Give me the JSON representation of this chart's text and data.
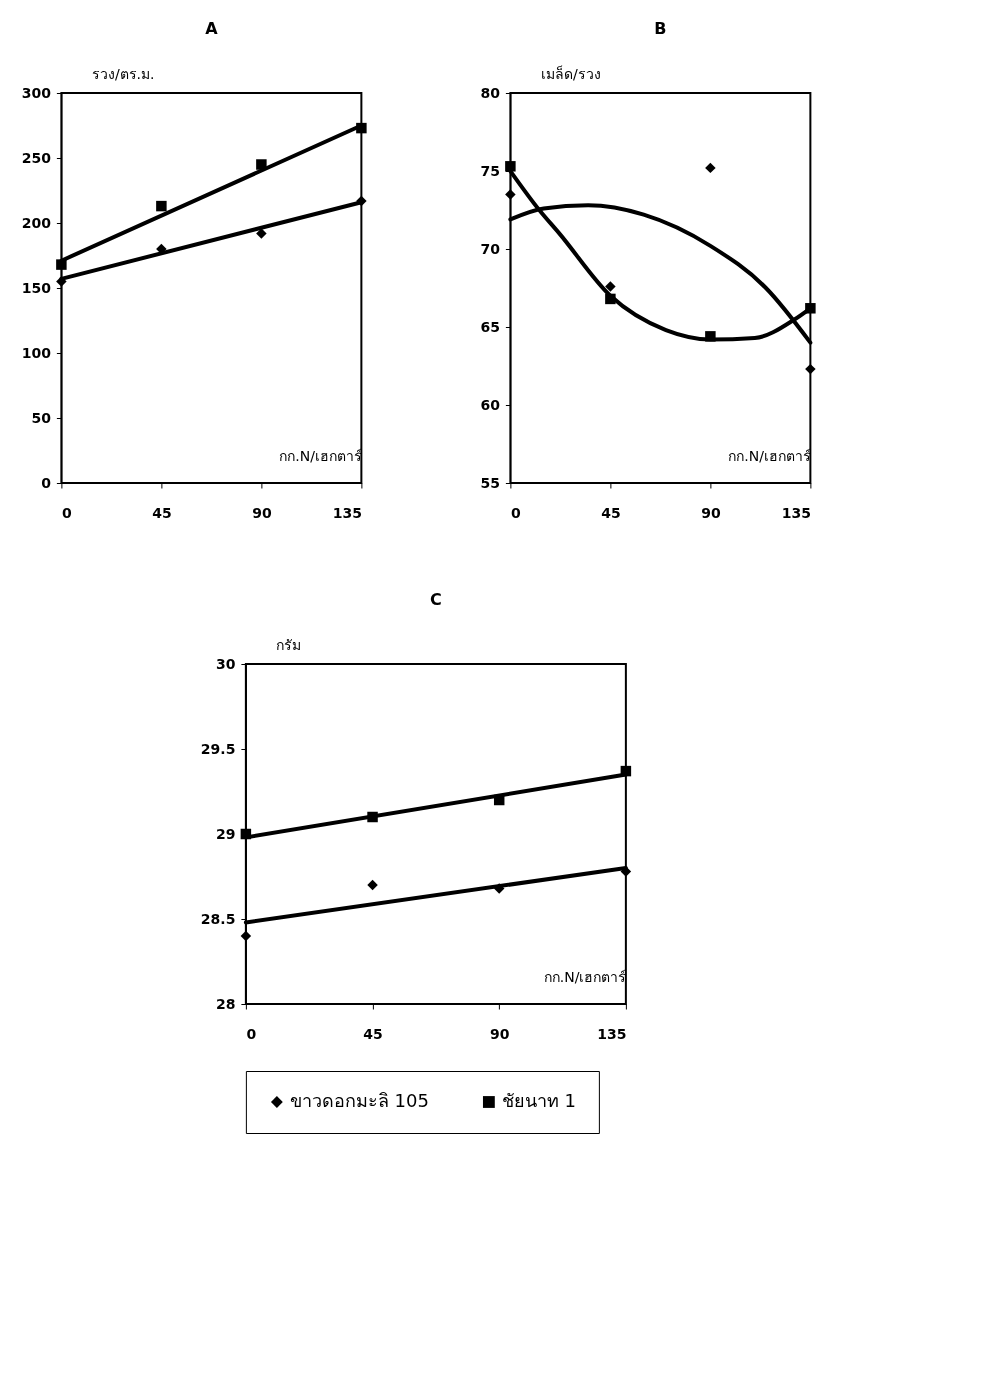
{
  "chart_data": [
    {
      "type": "scatter",
      "title": "A",
      "ylabel": "รวง/ตร.ม.",
      "xlabel": "กก.N/เฮกตาร์",
      "xlim": [
        0,
        135
      ],
      "xticks": [
        0,
        45,
        90,
        135
      ],
      "ylim": [
        0,
        300
      ],
      "yticks": [
        0,
        50,
        100,
        150,
        200,
        250,
        300
      ],
      "grid": false,
      "legend": false,
      "x": [
        0,
        45,
        90,
        135
      ],
      "series": [
        {
          "marker": "diamond",
          "color": "#000000",
          "values": [
            155,
            180,
            192,
            217
          ]
        },
        {
          "marker": "square",
          "color": "#000000",
          "values": [
            168,
            213,
            245,
            273
          ]
        },
        {
          "type": "line",
          "marker": "none",
          "color": "#000000",
          "x": [
            0,
            135
          ],
          "values": [
            157,
            216
          ]
        },
        {
          "type": "line",
          "marker": "none",
          "color": "#000000",
          "x": [
            0,
            135
          ],
          "values": [
            171,
            275
          ]
        }
      ]
    },
    {
      "type": "scatter",
      "title": "B",
      "ylabel": "เมล็ด/รวง",
      "xlabel": "กก.N/เฮกตาร์",
      "xlim": [
        0,
        135
      ],
      "xticks": [
        0,
        45,
        90,
        135
      ],
      "ylim": [
        55,
        80
      ],
      "yticks": [
        55,
        60,
        65,
        70,
        75,
        80
      ],
      "grid": false,
      "legend": false,
      "x": [
        0,
        45,
        90,
        135
      ],
      "series": [
        {
          "marker": "diamond",
          "color": "#000000",
          "values": [
            73.5,
            67.6,
            75.2,
            62.3
          ]
        },
        {
          "marker": "square",
          "color": "#000000",
          "values": [
            75.3,
            66.8,
            64.4,
            66.2
          ]
        },
        {
          "type": "line",
          "marker": "none",
          "color": "#000000",
          "x": [
            0,
            15,
            35,
            60,
            90,
            115,
            135
          ],
          "values": [
            71.9,
            72.6,
            72.8,
            72.2,
            70.2,
            67.5,
            64
          ]
        },
        {
          "type": "line",
          "marker": "none",
          "color": "#000000",
          "x": [
            0,
            13,
            22,
            45,
            70,
            90,
            110,
            128,
            135
          ],
          "values": [
            75,
            72.5,
            71,
            67,
            64.8,
            64.2,
            64.3,
            65.5,
            66.2
          ]
        }
      ]
    },
    {
      "type": "scatter",
      "title": "C",
      "ylabel": "กรัม",
      "xlabel": "กก.N/เฮกตาร์",
      "xlim": [
        0,
        135
      ],
      "xticks": [
        0,
        45,
        90,
        135
      ],
      "ylim": [
        28,
        30
      ],
      "yticks": [
        28,
        28.5,
        29,
        29.5,
        30
      ],
      "grid": false,
      "legend": "bottom",
      "x": [
        0,
        45,
        90,
        135
      ],
      "series": [
        {
          "name": "ขาวดอกมะลิ 105",
          "marker": "diamond",
          "color": "#000000",
          "values": [
            28.4,
            28.7,
            28.68,
            28.78
          ]
        },
        {
          "name": "ชัยนาท 1",
          "marker": "square",
          "color": "#000000",
          "values": [
            29,
            29.1,
            29.2,
            29.37
          ]
        },
        {
          "type": "line",
          "marker": "none",
          "color": "#000000",
          "x": [
            0,
            135
          ],
          "values": [
            28.48,
            28.8
          ]
        },
        {
          "type": "line",
          "marker": "none",
          "color": "#000000",
          "x": [
            0,
            135
          ],
          "values": [
            28.98,
            29.35
          ]
        }
      ]
    }
  ]
}
